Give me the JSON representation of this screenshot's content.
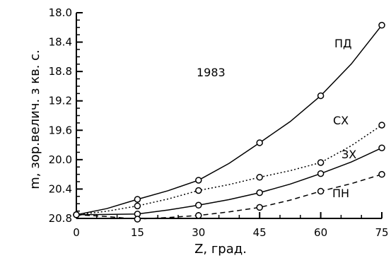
{
  "chart_data": {
    "type": "line",
    "annotation": "1983",
    "xlabel": "Z, град.",
    "ylabel": "m, зор.велич. з кв. с.",
    "x": [
      0,
      15,
      30,
      45,
      60,
      75
    ],
    "xlim": [
      0,
      75
    ],
    "ylim": [
      20.8,
      18.0
    ],
    "y_inverted": true,
    "xticks": [
      "0",
      "15",
      "30",
      "45",
      "60",
      "75"
    ],
    "yticks": [
      "18.0",
      "18.4",
      "18.8",
      "19.2",
      "19.6",
      "20.0",
      "20.4",
      "20.8"
    ],
    "grid": false,
    "legend": "labels beside curve ends",
    "series": [
      {
        "name": "ПД",
        "style": "solid",
        "values": [
          20.75,
          20.54,
          20.28,
          19.77,
          19.13,
          18.17
        ]
      },
      {
        "name": "СХ",
        "style": "dotted",
        "values": [
          20.75,
          20.63,
          20.42,
          20.24,
          20.04,
          19.53
        ]
      },
      {
        "name": "ЗХ",
        "style": "solid",
        "values": [
          20.75,
          20.74,
          20.62,
          20.45,
          20.19,
          19.84
        ]
      },
      {
        "name": "ПН",
        "style": "dashed",
        "values": [
          20.75,
          20.81,
          20.76,
          20.65,
          20.43,
          20.2
        ]
      }
    ]
  }
}
